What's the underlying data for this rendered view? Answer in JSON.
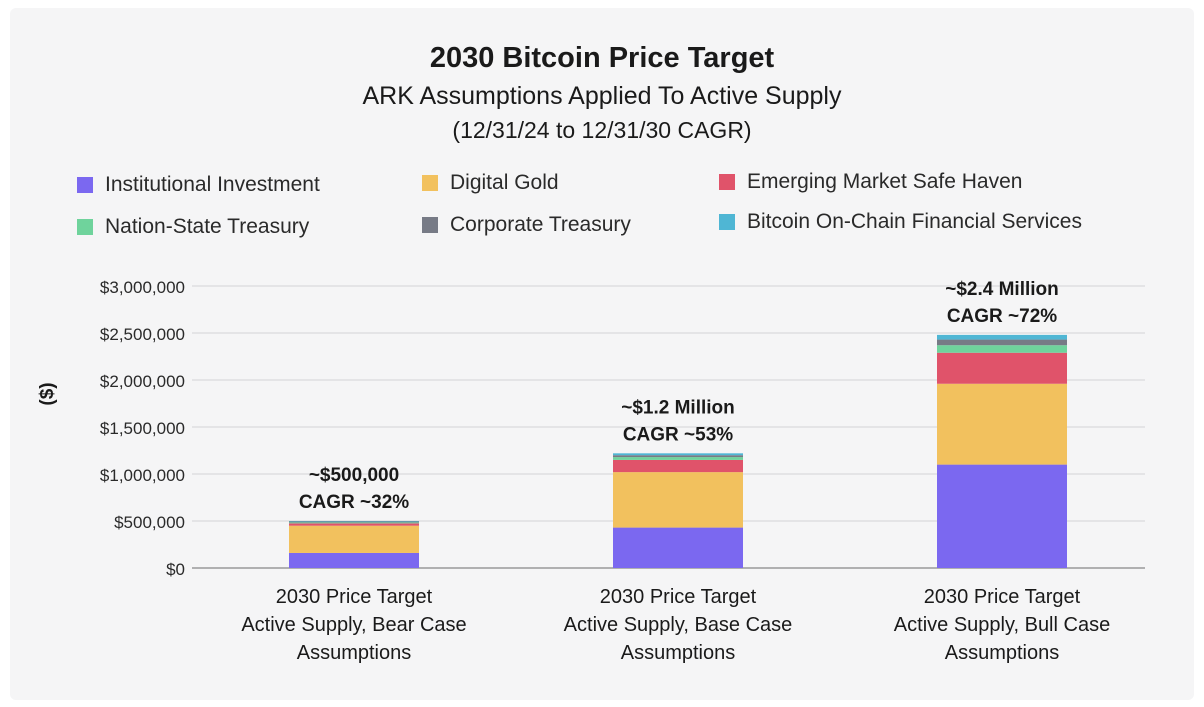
{
  "chart_data": {
    "type": "bar",
    "stacked": true,
    "title": "2030 Bitcoin Price Target",
    "subtitle": "ARK Assumptions Applied To Active Supply",
    "subtitle2": "(12/31/24 to 12/31/30 CAGR)",
    "ylabel": "($)",
    "xlabel": "",
    "ylim": [
      0,
      3000000
    ],
    "yticks": [
      0,
      500000,
      1000000,
      1500000,
      2000000,
      2500000,
      3000000
    ],
    "ytick_labels": [
      "$0",
      "$500,000",
      "$1,000,000",
      "$1,500,000",
      "$2,000,000",
      "$2,500,000",
      "$3,000,000"
    ],
    "grid": true,
    "legend_position": "top",
    "categories": [
      [
        "2030 Price Target",
        "Active Supply, Bear Case",
        "Assumptions"
      ],
      [
        "2030 Price Target",
        "Active Supply, Base Case",
        "Assumptions"
      ],
      [
        "2030 Price Target",
        "Active Supply, Bull Case",
        "Assumptions"
      ]
    ],
    "series": [
      {
        "name": "Institutional Investment",
        "color": "#7b68f0",
        "values": [
          160000,
          430000,
          1100000
        ]
      },
      {
        "name": "Digital Gold",
        "color": "#f2c15e",
        "values": [
          290000,
          590000,
          860000
        ]
      },
      {
        "name": "Emerging Market Safe Haven",
        "color": "#e0536a",
        "values": [
          25000,
          130000,
          330000
        ]
      },
      {
        "name": "Nation-State Treasury",
        "color": "#6fd39c",
        "values": [
          10000,
          30000,
          80000
        ]
      },
      {
        "name": "Corporate Treasury",
        "color": "#777b86",
        "values": [
          10000,
          20000,
          60000
        ]
      },
      {
        "name": "Bitcoin On-Chain Financial Services",
        "color": "#4fb6d4",
        "values": [
          5000,
          20000,
          50000
        ]
      }
    ],
    "annotations": [
      {
        "line1": "~$500,000",
        "line2": "CAGR ~32%"
      },
      {
        "line1": "~$1.2 Million",
        "line2": "CAGR ~53%"
      },
      {
        "line1": "~$2.4 Million",
        "line2": "CAGR ~72%"
      }
    ]
  }
}
